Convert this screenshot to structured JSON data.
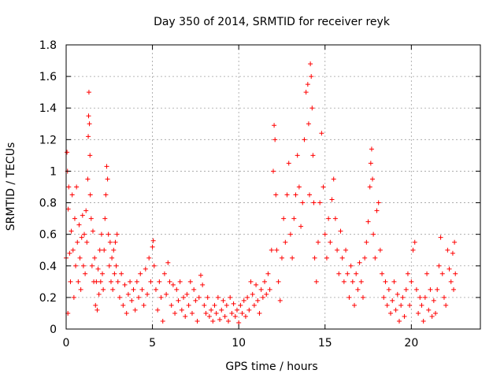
{
  "chart_data": {
    "type": "scatter",
    "title": "Day 350 of 2014, SRMTID for receiver reyk",
    "xlabel": "GPS time / hours",
    "ylabel": "SRMTID / TECUs",
    "xlim": [
      0,
      24
    ],
    "ylim": [
      0,
      1.8
    ],
    "xticks": [
      0,
      5,
      10,
      15,
      20
    ],
    "xtick_labels": [
      "0",
      "5",
      "10",
      "15",
      "20"
    ],
    "yticks": [
      0,
      0.2,
      0.4,
      0.6,
      0.8,
      1,
      1.2,
      1.4,
      1.6,
      1.8
    ],
    "ytick_labels": [
      "0",
      "0.2",
      "0.4",
      "0.6",
      "0.8",
      "1",
      "1.2",
      "1.4",
      "1.6",
      "1.8"
    ],
    "grid": true,
    "marker": "+",
    "series": [
      {
        "name": "SRMTID",
        "color": "#ff0000",
        "points": [
          [
            0.0,
            0.45
          ],
          [
            0.05,
            1.12
          ],
          [
            0.08,
            1.0
          ],
          [
            0.1,
            0.1
          ],
          [
            0.12,
            0.76
          ],
          [
            0.15,
            0.9
          ],
          [
            0.2,
            0.48
          ],
          [
            0.25,
            0.3
          ],
          [
            0.3,
            0.62
          ],
          [
            0.35,
            0.85
          ],
          [
            0.4,
            0.5
          ],
          [
            0.45,
            0.2
          ],
          [
            0.5,
            0.7
          ],
          [
            0.55,
            0.4
          ],
          [
            0.6,
            0.9
          ],
          [
            0.65,
            0.55
          ],
          [
            0.7,
            0.3
          ],
          [
            0.75,
            0.66
          ],
          [
            0.8,
            0.45
          ],
          [
            0.85,
            0.25
          ],
          [
            0.9,
            0.58
          ],
          [
            0.95,
            0.72
          ],
          [
            1.0,
            0.4
          ],
          [
            1.05,
            0.6
          ],
          [
            1.1,
            0.35
          ],
          [
            1.15,
            0.75
          ],
          [
            1.2,
            0.55
          ],
          [
            1.25,
            0.95
          ],
          [
            1.28,
            1.22
          ],
          [
            1.3,
            1.35
          ],
          [
            1.32,
            1.5
          ],
          [
            1.35,
            1.3
          ],
          [
            1.38,
            1.1
          ],
          [
            1.4,
            0.85
          ],
          [
            1.45,
            0.7
          ],
          [
            1.5,
            0.4
          ],
          [
            1.55,
            0.62
          ],
          [
            1.6,
            0.3
          ],
          [
            1.65,
            0.45
          ],
          [
            1.7,
            0.15
          ],
          [
            1.75,
            0.3
          ],
          [
            1.8,
            0.12
          ],
          [
            1.85,
            0.38
          ],
          [
            1.9,
            0.22
          ],
          [
            1.95,
            0.5
          ],
          [
            2.0,
            0.3
          ],
          [
            2.05,
            0.6
          ],
          [
            2.1,
            0.35
          ],
          [
            2.15,
            0.25
          ],
          [
            2.2,
            0.5
          ],
          [
            2.25,
            0.7
          ],
          [
            2.3,
            0.85
          ],
          [
            2.35,
            1.03
          ],
          [
            2.4,
            0.95
          ],
          [
            2.45,
            0.6
          ],
          [
            2.5,
            0.4
          ],
          [
            2.55,
            0.55
          ],
          [
            2.6,
            0.3
          ],
          [
            2.65,
            0.45
          ],
          [
            2.7,
            0.25
          ],
          [
            2.75,
            0.5
          ],
          [
            2.8,
            0.35
          ],
          [
            2.85,
            0.55
          ],
          [
            2.9,
            0.4
          ],
          [
            2.95,
            0.6
          ],
          [
            3.0,
            0.3
          ],
          [
            3.1,
            0.2
          ],
          [
            3.2,
            0.35
          ],
          [
            3.3,
            0.15
          ],
          [
            3.4,
            0.28
          ],
          [
            3.5,
            0.1
          ],
          [
            3.6,
            0.22
          ],
          [
            3.7,
            0.3
          ],
          [
            3.8,
            0.18
          ],
          [
            3.9,
            0.25
          ],
          [
            4.0,
            0.12
          ],
          [
            4.1,
            0.3
          ],
          [
            4.2,
            0.2
          ],
          [
            4.3,
            0.35
          ],
          [
            4.4,
            0.25
          ],
          [
            4.5,
            0.15
          ],
          [
            4.6,
            0.38
          ],
          [
            4.7,
            0.22
          ],
          [
            4.8,
            0.45
          ],
          [
            4.9,
            0.3
          ],
          [
            5.0,
            0.52
          ],
          [
            5.05,
            0.56
          ],
          [
            5.1,
            0.4
          ],
          [
            5.2,
            0.25
          ],
          [
            5.3,
            0.12
          ],
          [
            5.4,
            0.3
          ],
          [
            5.5,
            0.2
          ],
          [
            5.6,
            0.05
          ],
          [
            5.7,
            0.35
          ],
          [
            5.8,
            0.22
          ],
          [
            5.9,
            0.42
          ],
          [
            6.0,
            0.3
          ],
          [
            6.1,
            0.15
          ],
          [
            6.2,
            0.28
          ],
          [
            6.3,
            0.1
          ],
          [
            6.4,
            0.25
          ],
          [
            6.5,
            0.18
          ],
          [
            6.6,
            0.3
          ],
          [
            6.7,
            0.12
          ],
          [
            6.8,
            0.2
          ],
          [
            6.9,
            0.08
          ],
          [
            7.0,
            0.22
          ],
          [
            7.1,
            0.15
          ],
          [
            7.2,
            0.3
          ],
          [
            7.3,
            0.1
          ],
          [
            7.4,
            0.25
          ],
          [
            7.5,
            0.18
          ],
          [
            7.6,
            0.05
          ],
          [
            7.7,
            0.2
          ],
          [
            7.8,
            0.34
          ],
          [
            7.9,
            0.28
          ],
          [
            8.0,
            0.15
          ],
          [
            8.1,
            0.1
          ],
          [
            8.2,
            0.2
          ],
          [
            8.3,
            0.08
          ],
          [
            8.4,
            0.12
          ],
          [
            8.5,
            0.05
          ],
          [
            8.6,
            0.15
          ],
          [
            8.7,
            0.1
          ],
          [
            8.8,
            0.2
          ],
          [
            8.9,
            0.06
          ],
          [
            9.0,
            0.12
          ],
          [
            9.1,
            0.18
          ],
          [
            9.2,
            0.08
          ],
          [
            9.3,
            0.15
          ],
          [
            9.4,
            0.05
          ],
          [
            9.5,
            0.2
          ],
          [
            9.6,
            0.1
          ],
          [
            9.7,
            0.16
          ],
          [
            9.8,
            0.08
          ],
          [
            9.9,
            0.12
          ],
          [
            10.0,
            0.04
          ],
          [
            10.1,
            0.15
          ],
          [
            10.2,
            0.1
          ],
          [
            10.3,
            0.18
          ],
          [
            10.4,
            0.08
          ],
          [
            10.5,
            0.2
          ],
          [
            10.6,
            0.12
          ],
          [
            10.7,
            0.3
          ],
          [
            10.8,
            0.22
          ],
          [
            10.9,
            0.15
          ],
          [
            11.0,
            0.28
          ],
          [
            11.1,
            0.18
          ],
          [
            11.2,
            0.1
          ],
          [
            11.3,
            0.25
          ],
          [
            11.4,
            0.2
          ],
          [
            11.5,
            0.3
          ],
          [
            11.6,
            0.22
          ],
          [
            11.7,
            0.35
          ],
          [
            11.8,
            0.25
          ],
          [
            11.9,
            0.5
          ],
          [
            12.0,
            1.0
          ],
          [
            12.05,
            1.29
          ],
          [
            12.1,
            1.2
          ],
          [
            12.15,
            0.85
          ],
          [
            12.2,
            0.5
          ],
          [
            12.3,
            0.3
          ],
          [
            12.4,
            0.18
          ],
          [
            12.5,
            0.45
          ],
          [
            12.6,
            0.7
          ],
          [
            12.7,
            0.55
          ],
          [
            12.8,
            0.85
          ],
          [
            12.9,
            1.05
          ],
          [
            13.0,
            0.6
          ],
          [
            13.1,
            0.45
          ],
          [
            13.2,
            0.7
          ],
          [
            13.3,
            0.85
          ],
          [
            13.4,
            1.1
          ],
          [
            13.5,
            0.9
          ],
          [
            13.6,
            0.65
          ],
          [
            13.7,
            0.8
          ],
          [
            13.8,
            1.2
          ],
          [
            13.9,
            1.5
          ],
          [
            14.0,
            1.55
          ],
          [
            14.05,
            1.3
          ],
          [
            14.1,
            0.85
          ],
          [
            14.15,
            1.68
          ],
          [
            14.2,
            1.6
          ],
          [
            14.25,
            1.4
          ],
          [
            14.3,
            1.1
          ],
          [
            14.35,
            0.8
          ],
          [
            14.4,
            0.45
          ],
          [
            14.5,
            0.3
          ],
          [
            14.6,
            0.55
          ],
          [
            14.7,
            0.8
          ],
          [
            14.8,
            1.24
          ],
          [
            14.9,
            0.9
          ],
          [
            15.0,
            0.6
          ],
          [
            15.1,
            0.45
          ],
          [
            15.2,
            0.7
          ],
          [
            15.3,
            0.55
          ],
          [
            15.4,
            0.82
          ],
          [
            15.5,
            0.95
          ],
          [
            15.6,
            0.7
          ],
          [
            15.7,
            0.5
          ],
          [
            15.8,
            0.35
          ],
          [
            15.9,
            0.62
          ],
          [
            16.0,
            0.45
          ],
          [
            16.1,
            0.3
          ],
          [
            16.2,
            0.5
          ],
          [
            16.3,
            0.35
          ],
          [
            16.4,
            0.2
          ],
          [
            16.5,
            0.4
          ],
          [
            16.6,
            0.3
          ],
          [
            16.7,
            0.15
          ],
          [
            16.8,
            0.35
          ],
          [
            16.9,
            0.25
          ],
          [
            17.0,
            0.42
          ],
          [
            17.1,
            0.3
          ],
          [
            17.2,
            0.2
          ],
          [
            17.3,
            0.45
          ],
          [
            17.4,
            0.55
          ],
          [
            17.5,
            0.68
          ],
          [
            17.6,
            0.9
          ],
          [
            17.65,
            1.05
          ],
          [
            17.7,
            1.14
          ],
          [
            17.75,
            0.95
          ],
          [
            17.8,
            0.6
          ],
          [
            17.9,
            0.45
          ],
          [
            18.0,
            0.75
          ],
          [
            18.1,
            0.8
          ],
          [
            18.2,
            0.5
          ],
          [
            18.3,
            0.35
          ],
          [
            18.4,
            0.2
          ],
          [
            18.5,
            0.3
          ],
          [
            18.6,
            0.15
          ],
          [
            18.7,
            0.25
          ],
          [
            18.8,
            0.1
          ],
          [
            18.9,
            0.18
          ],
          [
            19.0,
            0.3
          ],
          [
            19.1,
            0.12
          ],
          [
            19.2,
            0.22
          ],
          [
            19.3,
            0.05
          ],
          [
            19.4,
            0.15
          ],
          [
            19.5,
            0.2
          ],
          [
            19.6,
            0.08
          ],
          [
            19.7,
            0.25
          ],
          [
            19.8,
            0.35
          ],
          [
            19.9,
            0.15
          ],
          [
            20.0,
            0.3
          ],
          [
            20.1,
            0.5
          ],
          [
            20.2,
            0.55
          ],
          [
            20.3,
            0.25
          ],
          [
            20.4,
            0.1
          ],
          [
            20.5,
            0.2
          ],
          [
            20.6,
            0.15
          ],
          [
            20.7,
            0.05
          ],
          [
            20.8,
            0.2
          ],
          [
            20.9,
            0.35
          ],
          [
            21.0,
            0.12
          ],
          [
            21.1,
            0.25
          ],
          [
            21.2,
            0.08
          ],
          [
            21.3,
            0.18
          ],
          [
            21.4,
            0.1
          ],
          [
            21.5,
            0.25
          ],
          [
            21.6,
            0.4
          ],
          [
            21.7,
            0.58
          ],
          [
            21.8,
            0.35
          ],
          [
            21.9,
            0.2
          ],
          [
            22.0,
            0.15
          ],
          [
            22.1,
            0.5
          ],
          [
            22.2,
            0.38
          ],
          [
            22.3,
            0.3
          ],
          [
            22.4,
            0.48
          ],
          [
            22.45,
            0.25
          ],
          [
            22.5,
            0.55
          ],
          [
            22.55,
            0.35
          ]
        ]
      }
    ]
  }
}
